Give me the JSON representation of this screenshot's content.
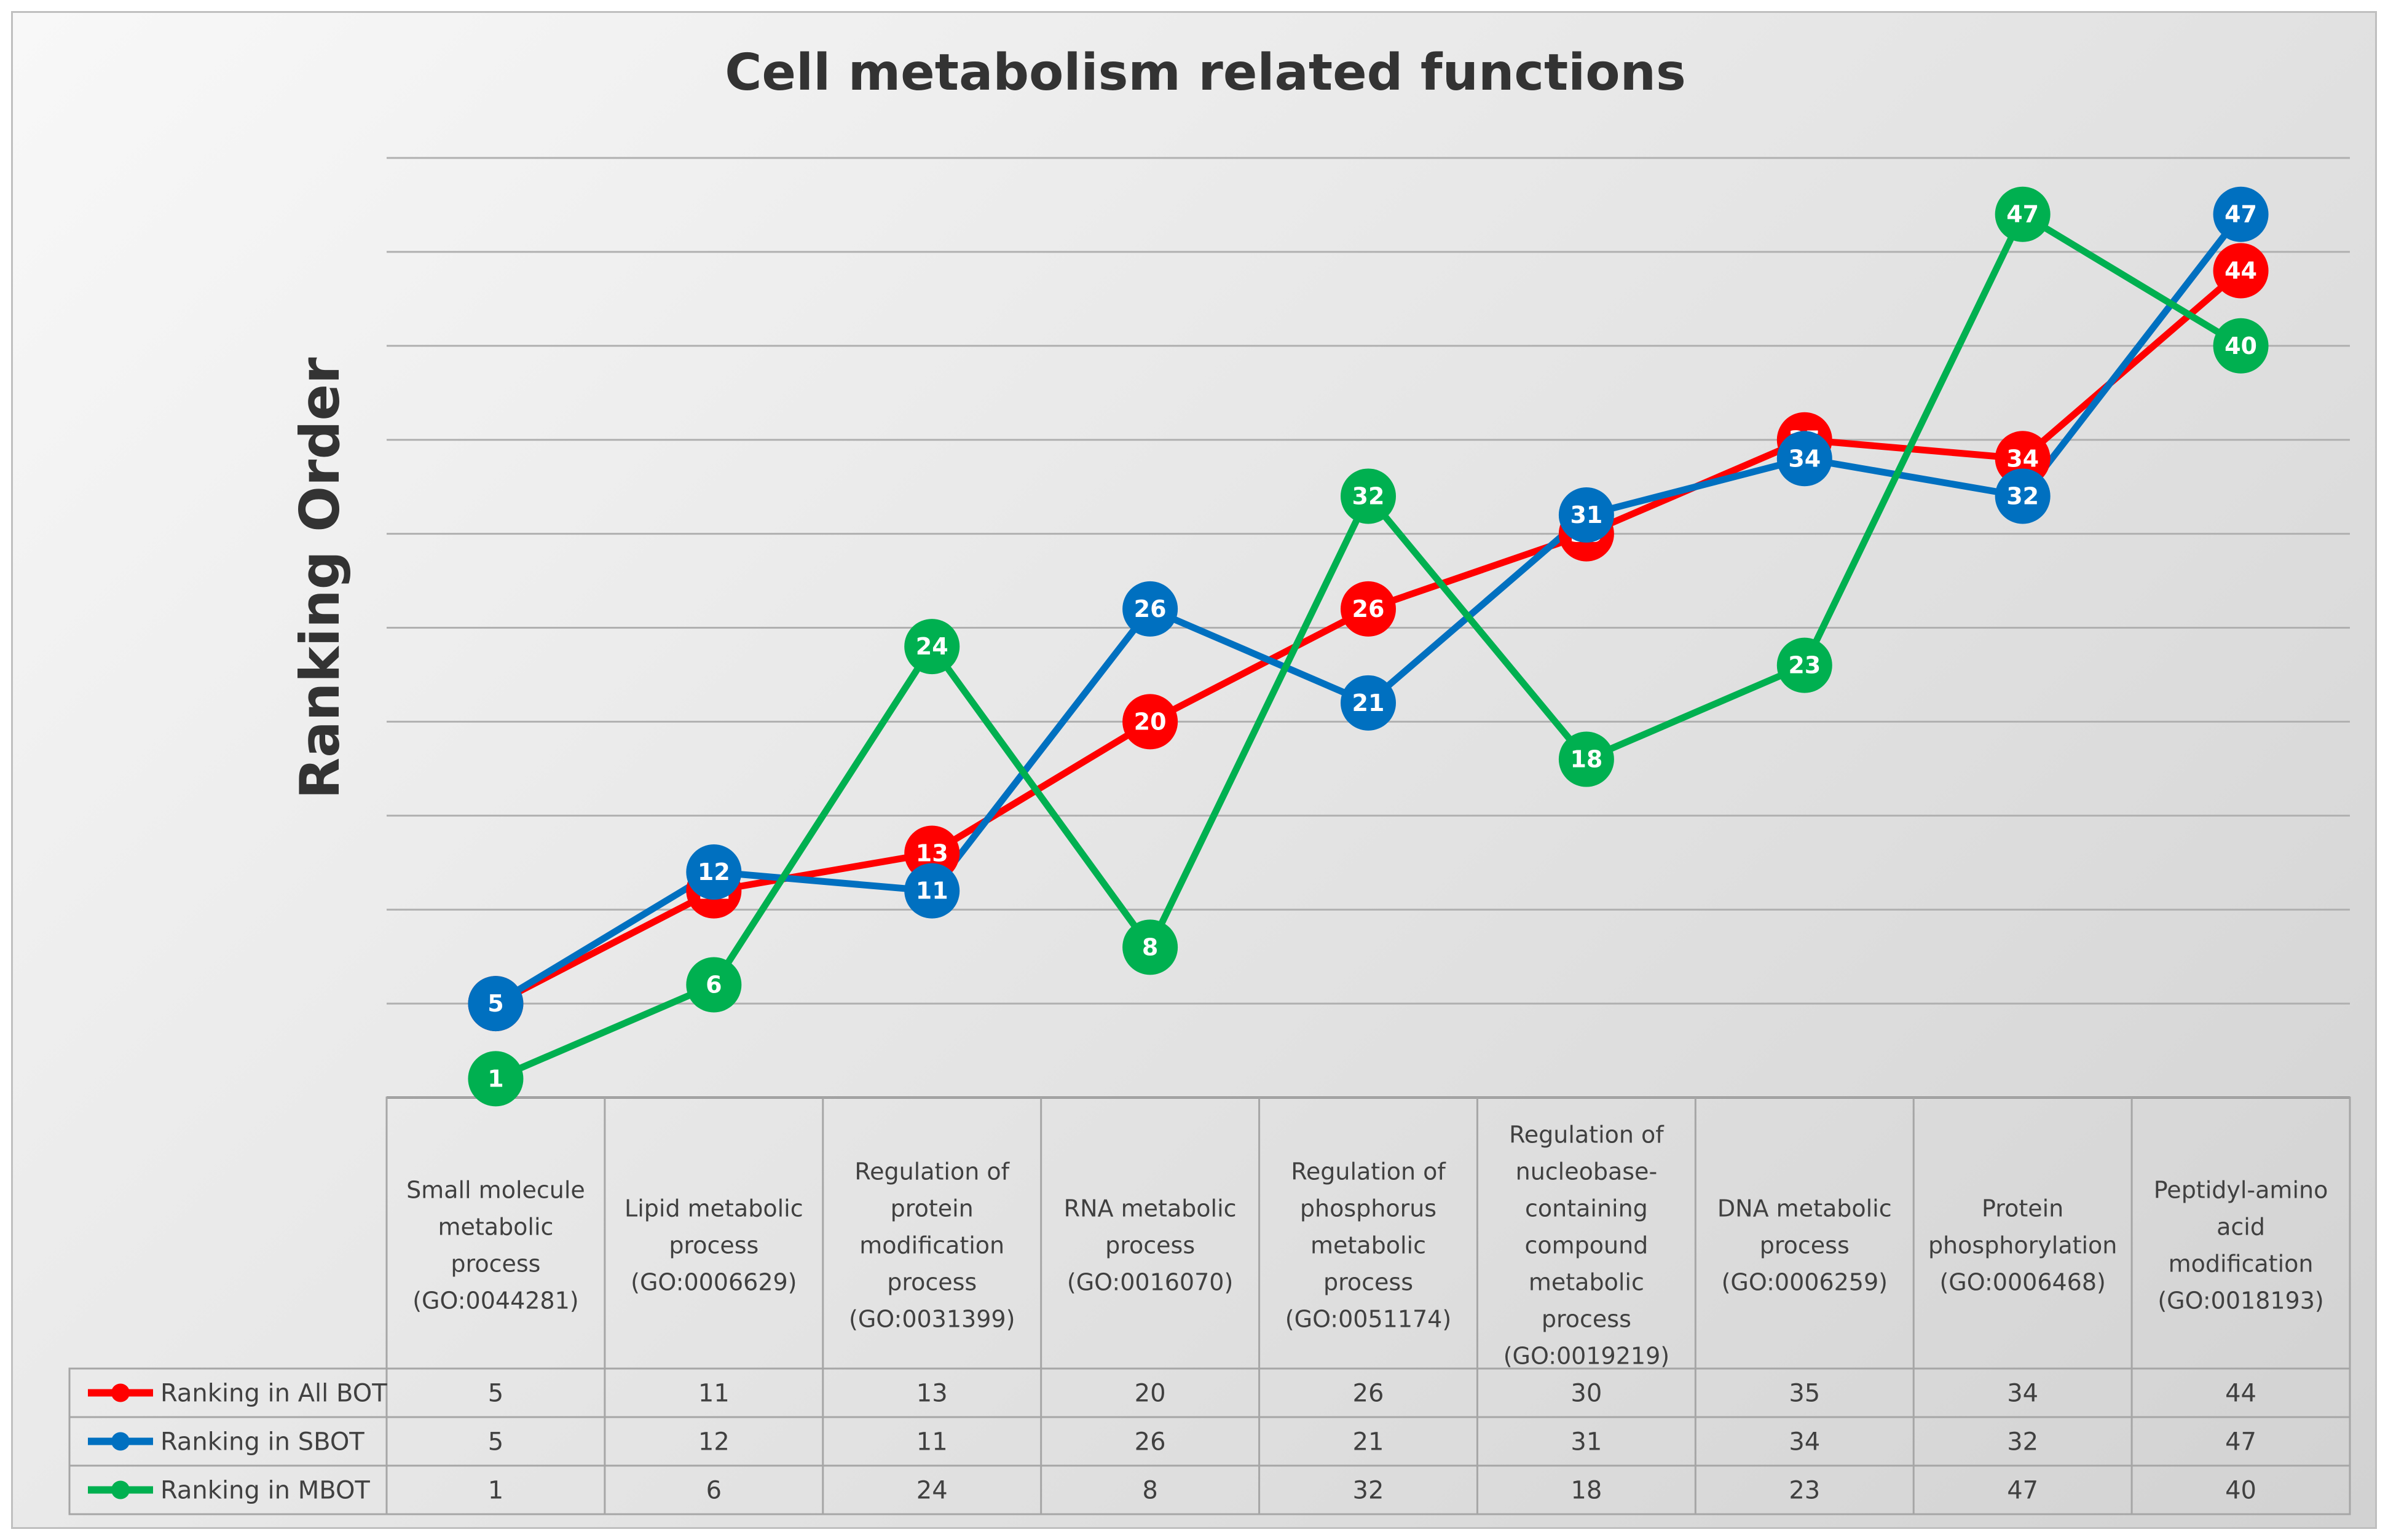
{
  "chart_data": {
    "type": "line",
    "title": "Cell metabolism related functions",
    "xlabel": "",
    "ylabel": "Ranking Order",
    "ylim": [
      0,
      50
    ],
    "grid": true,
    "legend_position": "bottom-left data table",
    "categories": [
      [
        "Small molecule",
        "metabolic",
        "process",
        "(GO:0044281)"
      ],
      [
        "Lipid metabolic",
        "process",
        "(GO:0006629)"
      ],
      [
        "Regulation of",
        "protein",
        "modification",
        "process",
        "(GO:0031399)"
      ],
      [
        "RNA metabolic",
        "process",
        "(GO:0016070)"
      ],
      [
        "Regulation of",
        "phosphorus",
        "metabolic",
        "process",
        "(GO:0051174)"
      ],
      [
        "Regulation of",
        "nucleobase-",
        "containing",
        "compound",
        "metabolic",
        "process",
        "(GO:0019219)"
      ],
      [
        "DNA metabolic",
        "process",
        "(GO:0006259)"
      ],
      [
        "Protein",
        "phosphorylation",
        "(GO:0006468)"
      ],
      [
        "Peptidyl-amino",
        "acid",
        "modification",
        "(GO:0018193)"
      ]
    ],
    "series": [
      {
        "name": "Ranking in All BOT",
        "color": "#ff0000",
        "values": [
          5,
          11,
          13,
          20,
          26,
          30,
          35,
          34,
          44
        ]
      },
      {
        "name": "Ranking in SBOT",
        "color": "#0070c0",
        "values": [
          5,
          12,
          11,
          26,
          21,
          31,
          34,
          32,
          47
        ]
      },
      {
        "name": "Ranking in MBOT",
        "color": "#00b050",
        "values": [
          1,
          6,
          24,
          8,
          32,
          18,
          23,
          47,
          40
        ]
      }
    ]
  }
}
